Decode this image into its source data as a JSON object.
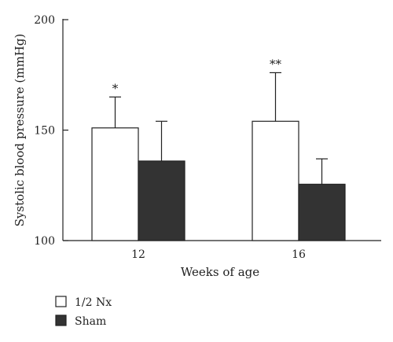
{
  "chart_data": {
    "type": "bar",
    "title": "",
    "xlabel": "Weeks of age",
    "ylabel": "Systolic blood pressure (mmHg)",
    "categories": [
      "12",
      "16"
    ],
    "ylim": [
      100,
      200
    ],
    "yticks": [
      "100",
      "150",
      "200"
    ],
    "series": [
      {
        "name": "1/2 Nx",
        "color": "#ffffff",
        "values": [
          151,
          154
        ],
        "error": [
          14,
          22
        ],
        "significance": [
          "*",
          "**"
        ]
      },
      {
        "name": "Sham",
        "color": "#333333",
        "values": [
          136,
          125.5
        ],
        "error": [
          18,
          11.5
        ],
        "significance": [
          "",
          ""
        ]
      }
    ],
    "legend_position": "bottom-left",
    "grid": false
  }
}
